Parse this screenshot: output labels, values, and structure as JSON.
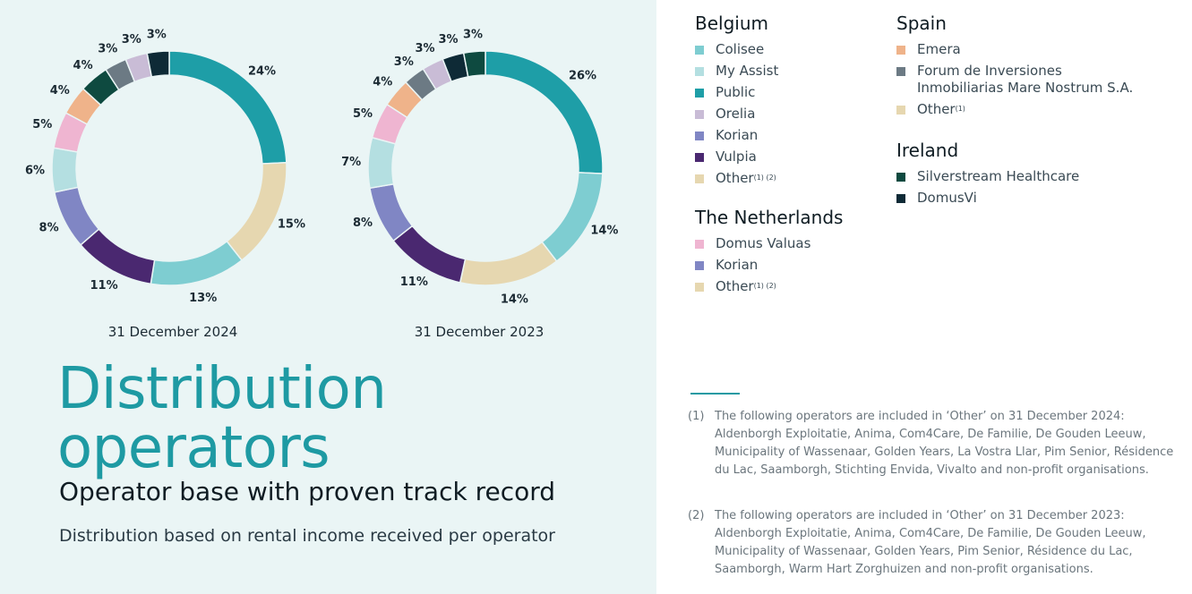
{
  "chart_data": [
    {
      "type": "pie",
      "caption": "31 December 2024",
      "labels": [
        "Public",
        "Other",
        "My Assist",
        "Vulpia",
        "Korian",
        "Colisee",
        "Domus Valuas",
        "Emera",
        "Silverstream Healthcare",
        "Forum de Inversiones Inmobiliarias Mare Nostrum S.A.",
        "Orelia",
        "DomusVi"
      ],
      "values": [
        24,
        15,
        13,
        11,
        8,
        6,
        5,
        4,
        4,
        3,
        3,
        3
      ],
      "value_labels": [
        "24%",
        "15%",
        "13%",
        "11%",
        "8%",
        "6%",
        "5%",
        "4%",
        "4%",
        "3%",
        "3%",
        "3%"
      ],
      "colors": [
        "#1e9ea7",
        "#e6d7b0",
        "#7ecdd1",
        "#4a2870",
        "#8086c4",
        "#b4dfe1",
        "#efb5d1",
        "#efb38a",
        "#0e4a40",
        "#6c7a84",
        "#c9bcd6",
        "#0e2a36"
      ]
    },
    {
      "type": "pie",
      "caption": "31 December 2023",
      "labels": [
        "Public",
        "Colisee",
        "Other",
        "Vulpia",
        "Korian",
        "My Assist",
        "Domus Valuas",
        "Emera",
        "Forum de Inversiones Inmobiliarias Mare Nostrum S.A.",
        "Orelia",
        "DomusVi",
        "Silverstream Healthcare"
      ],
      "values": [
        26,
        14,
        14,
        11,
        8,
        7,
        5,
        4,
        3,
        3,
        3,
        3
      ],
      "value_labels": [
        "26%",
        "14%",
        "14%",
        "11%",
        "8%",
        "7%",
        "5%",
        "4%",
        "3%",
        "3%",
        "3%",
        "3%"
      ],
      "colors": [
        "#1e9ea7",
        "#7ecdd1",
        "#e6d7b0",
        "#4a2870",
        "#8086c4",
        "#b4dfe1",
        "#efb5d1",
        "#efb38a",
        "#6c7a84",
        "#c9bcd6",
        "#0e2a36",
        "#0e4a40"
      ]
    }
  ],
  "title_line1": "Distribution",
  "title_line2": "operators",
  "subtitle": "Operator base with proven track record",
  "description": "Distribution based on rental income received per operator",
  "legend": {
    "belgium": {
      "heading": "Belgium",
      "items": [
        {
          "label": "Colisee",
          "color": "#7ecdd1"
        },
        {
          "label": "My Assist",
          "color": "#b4dfe1"
        },
        {
          "label": "Public",
          "color": "#1e9ea7"
        },
        {
          "label": "Orelia",
          "color": "#c9bcd6"
        },
        {
          "label": "Korian",
          "color": "#8086c4"
        },
        {
          "label": "Vulpia",
          "color": "#4a2870"
        },
        {
          "label": "Other",
          "sup": "(1) (2)",
          "color": "#e6d7b0"
        }
      ]
    },
    "netherlands": {
      "heading": "The Netherlands",
      "items": [
        {
          "label": "Domus Valuas",
          "color": "#efb5d1"
        },
        {
          "label": "Korian",
          "color": "#8086c4"
        },
        {
          "label": "Other",
          "sup": "(1) (2)",
          "color": "#e6d7b0"
        }
      ]
    },
    "spain": {
      "heading": "Spain",
      "items": [
        {
          "label": "Emera",
          "color": "#efb38a"
        },
        {
          "label": "Forum de Inversiones",
          "label2": "Inmobiliarias Mare Nostrum S.A.",
          "color": "#6c7a84"
        },
        {
          "label": "Other",
          "sup": "(1)",
          "color": "#e6d7b0"
        }
      ]
    },
    "ireland": {
      "heading": "Ireland",
      "items": [
        {
          "label": "Silverstream Healthcare",
          "color": "#0e4a40"
        },
        {
          "label": "DomusVi",
          "color": "#0e2a36"
        }
      ]
    }
  },
  "notes": [
    {
      "num": "(1)",
      "text": "The following operators are included in ‘Other’ on 31 December 2024: Aldenborgh Exploitatie, Anima, Com4Care, De Familie, De Gouden Leeuw, Municipality of  Wassenaar, Golden Years, La Vostra Llar, Pim Senior, Résidence du Lac, Saamborgh, Stichting Envida, Vivalto and non-profit organisations."
    },
    {
      "num": "(2)",
      "text": "The following operators are included in ‘Other’ on 31 December 2023: Aldenborgh Exploitatie, Anima, Com4Care, De Familie, De Gouden Leeuw, Municipality of  Wassenaar, Golden Years, Pim Senior, Résidence du Lac, Saamborgh, Warm Hart Zorghuizen and non-profit organisations."
    }
  ]
}
